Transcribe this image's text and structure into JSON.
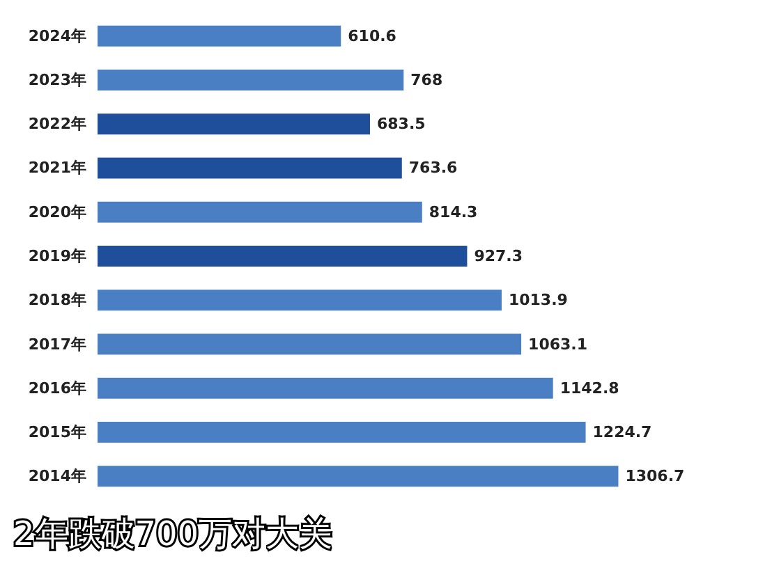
{
  "chart_data": {
    "type": "bar",
    "orientation": "horizontal",
    "categories": [
      "2024年",
      "2023年",
      "2022年",
      "2021年",
      "2020年",
      "2019年",
      "2018年",
      "2017年",
      "2016年",
      "2015年",
      "2014年"
    ],
    "values": [
      610.6,
      768,
      683.5,
      763.6,
      814.3,
      927.3,
      1013.9,
      1063.1,
      1142.8,
      1224.7,
      1306.7
    ],
    "colors": [
      "#4a7fc4",
      "#4a7fc4",
      "#1f4f9a",
      "#1f4f9a",
      "#4a7fc4",
      "#1f4f9a",
      "#4a7fc4",
      "#4a7fc4",
      "#4a7fc4",
      "#4a7fc4",
      "#4a7fc4"
    ],
    "data_labels": true,
    "annotations": [
      "2年跌破700万对大关"
    ]
  }
}
